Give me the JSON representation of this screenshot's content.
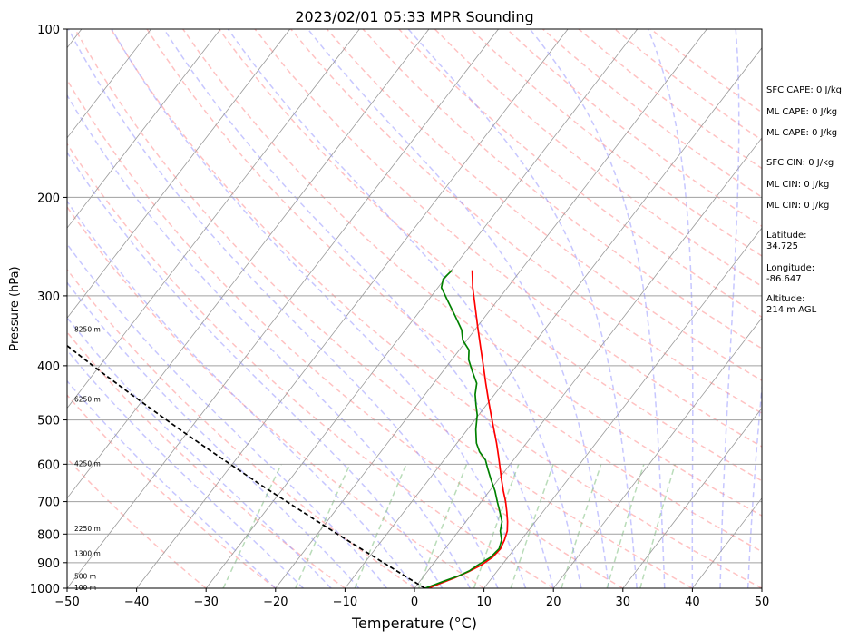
{
  "chart_data": {
    "type": "line",
    "chart_kind": "skew-T log-P sounding",
    "title": "2023/02/01 05:33 MPR Sounding",
    "xlabel": "Temperature (°C)",
    "ylabel": "Pressure (hPa)",
    "xlim": [
      -50,
      50
    ],
    "ylim": [
      1000,
      100
    ],
    "y_scale": "log",
    "x_ticks": [
      "−50",
      "−40",
      "−30",
      "−20",
      "−10",
      "0",
      "10",
      "20",
      "30",
      "40",
      "50"
    ],
    "y_ticks": [
      "100",
      "200",
      "300",
      "400",
      "500",
      "600",
      "700",
      "800",
      "900",
      "1000"
    ],
    "height_labels": [
      {
        "pressure": 1000,
        "label": "100 m"
      },
      {
        "pressure": 955,
        "label": "500 m"
      },
      {
        "pressure": 870,
        "label": "1300 m"
      },
      {
        "pressure": 785,
        "label": "2250 m"
      },
      {
        "pressure": 600,
        "label": "4250 m"
      },
      {
        "pressure": 460,
        "label": "6250 m"
      },
      {
        "pressure": 345,
        "label": "8250 m"
      }
    ],
    "series": [
      {
        "role": "temperature",
        "color": "#ff0000",
        "points": [
          [
            1000,
            2.0
          ],
          [
            980,
            3.2
          ],
          [
            960,
            4.5
          ],
          [
            935,
            5.9
          ],
          [
            910,
            7.0
          ],
          [
            880,
            7.8
          ],
          [
            850,
            8.0
          ],
          [
            820,
            7.6
          ],
          [
            790,
            7.0
          ],
          [
            760,
            6.0
          ],
          [
            730,
            4.8
          ],
          [
            700,
            3.5
          ],
          [
            670,
            2.0
          ],
          [
            640,
            0.5
          ],
          [
            610,
            -1.0
          ],
          [
            580,
            -2.6
          ],
          [
            550,
            -4.3
          ],
          [
            520,
            -6.2
          ],
          [
            490,
            -8.2
          ],
          [
            460,
            -10.3
          ],
          [
            430,
            -12.5
          ],
          [
            400,
            -14.8
          ],
          [
            370,
            -17.3
          ],
          [
            340,
            -20.0
          ],
          [
            310,
            -22.9
          ],
          [
            290,
            -25.0
          ],
          [
            270,
            -27.0
          ]
        ]
      },
      {
        "role": "dewpoint",
        "color": "#008000",
        "points": [
          [
            1000,
            1.5
          ],
          [
            985,
            2.5
          ],
          [
            970,
            3.5
          ],
          [
            950,
            5.0
          ],
          [
            930,
            6.0
          ],
          [
            910,
            6.5
          ],
          [
            880,
            7.5
          ],
          [
            850,
            7.8
          ],
          [
            820,
            7.2
          ],
          [
            790,
            6.0
          ],
          [
            760,
            5.2
          ],
          [
            730,
            3.8
          ],
          [
            700,
            2.3
          ],
          [
            670,
            0.8
          ],
          [
            640,
            -1.0
          ],
          [
            610,
            -2.8
          ],
          [
            590,
            -4.0
          ],
          [
            570,
            -5.8
          ],
          [
            550,
            -7.2
          ],
          [
            520,
            -8.8
          ],
          [
            490,
            -10.2
          ],
          [
            470,
            -11.5
          ],
          [
            450,
            -12.8
          ],
          [
            430,
            -13.8
          ],
          [
            410,
            -15.7
          ],
          [
            390,
            -17.6
          ],
          [
            375,
            -18.6
          ],
          [
            360,
            -20.6
          ],
          [
            345,
            -21.9
          ],
          [
            325,
            -24.5
          ],
          [
            305,
            -27.3
          ],
          [
            290,
            -29.5
          ],
          [
            280,
            -30.2
          ],
          [
            270,
            -29.9
          ]
        ]
      },
      {
        "role": "parcel-profile",
        "color": "#000000",
        "line_style": "dashed",
        "points": [
          [
            1000,
            1.5
          ],
          [
            950,
            -2.8
          ],
          [
            900,
            -7.3
          ],
          [
            850,
            -12.1
          ],
          [
            800,
            -17.1
          ],
          [
            750,
            -22.4
          ],
          [
            700,
            -28.0
          ],
          [
            650,
            -34.0
          ],
          [
            600,
            -40.3
          ],
          [
            550,
            -47.1
          ],
          [
            500,
            -54.4
          ],
          [
            450,
            -62.3
          ],
          [
            400,
            -71.0
          ],
          [
            350,
            -80.6
          ],
          [
            300,
            -91.3
          ],
          [
            270,
            -98.4
          ]
        ]
      }
    ],
    "background_lines": {
      "isotherms": "gray solid, every 10 °C",
      "dry_adiabats": "red dashed",
      "moist_adiabats": "blue dashed",
      "mixing_ratio_lines": "green dashed"
    },
    "grid": true
  },
  "panel": {
    "sfc_cape": "SFC CAPE: 0 J/kg",
    "ml_cape_1": "ML CAPE: 0 J/kg",
    "ml_cape_2": "ML CAPE: 0 J/kg",
    "sfc_cin": "SFC CIN: 0 J/kg",
    "ml_cin_1": "ML CIN: 0 J/kg",
    "ml_cin_2": "ML CIN: 0 J/kg",
    "latitude_label": "Latitude:",
    "latitude_value": "34.725",
    "longitude_label": "Longitude:",
    "longitude_value": "-86.647",
    "altitude_label": "Altitude:",
    "altitude_value": "214 m AGL"
  }
}
